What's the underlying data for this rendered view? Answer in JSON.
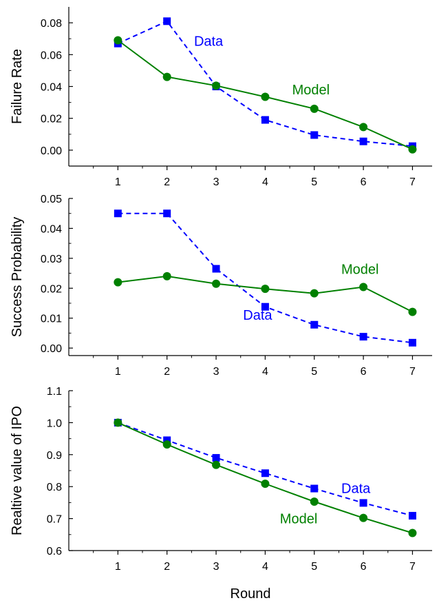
{
  "chart_data": [
    {
      "type": "line",
      "x": [
        1,
        2,
        3,
        4,
        5,
        6,
        7
      ],
      "xlim": [
        0.0,
        7.4
      ],
      "ylim": [
        -0.01,
        0.09
      ],
      "yticks": [
        0.0,
        0.02,
        0.04,
        0.06,
        0.08
      ],
      "ytick_labels": [
        "0.00",
        "0.02",
        "0.04",
        "0.06",
        "0.08"
      ],
      "xticks": [
        1,
        2,
        3,
        4,
        5,
        6,
        7
      ],
      "xtick_labels": [
        "1",
        "2",
        "3",
        "4",
        "5",
        "6",
        "7"
      ],
      "ylabel": "Failure Rate",
      "xlabel": "",
      "series": [
        {
          "name": "Data",
          "color": "#0000FF",
          "marker": "square",
          "dash": true,
          "values": [
            0.067,
            0.081,
            0.04,
            0.019,
            0.0095,
            0.0055,
            0.0025
          ]
        },
        {
          "name": "Model",
          "color": "#008000",
          "marker": "circle",
          "dash": false,
          "values": [
            0.069,
            0.046,
            0.0405,
            0.0335,
            0.026,
            0.0145,
            0.0005
          ]
        }
      ],
      "annotations": [
        {
          "text": "Data",
          "color": "#0000FF",
          "x": 2.55,
          "y": 0.0655
        },
        {
          "text": "Model",
          "color": "#008000",
          "x": 4.55,
          "y": 0.035
        }
      ]
    },
    {
      "type": "line",
      "x": [
        1,
        2,
        3,
        4,
        5,
        6,
        7
      ],
      "xlim": [
        0.0,
        7.4
      ],
      "ylim": [
        -0.0025,
        0.05
      ],
      "yticks": [
        0.0,
        0.01,
        0.02,
        0.03,
        0.04,
        0.05
      ],
      "ytick_labels": [
        "0.00",
        "0.01",
        "0.02",
        "0.03",
        "0.04",
        "0.05"
      ],
      "xticks": [
        1,
        2,
        3,
        4,
        5,
        6,
        7
      ],
      "xtick_labels": [
        "1",
        "2",
        "3",
        "4",
        "5",
        "6",
        "7"
      ],
      "ylabel": "Success Probability",
      "xlabel": "",
      "series": [
        {
          "name": "Data",
          "color": "#0000FF",
          "marker": "square",
          "dash": true,
          "values": [
            0.045,
            0.045,
            0.0265,
            0.0138,
            0.0078,
            0.0038,
            0.0018
          ]
        },
        {
          "name": "Model",
          "color": "#008000",
          "marker": "circle",
          "dash": false,
          "values": [
            0.022,
            0.024,
            0.0215,
            0.0198,
            0.0183,
            0.0204,
            0.0121
          ]
        }
      ],
      "annotations": [
        {
          "text": "Data",
          "color": "#0000FF",
          "x": 3.55,
          "y": 0.0095
        },
        {
          "text": "Model",
          "color": "#008000",
          "x": 5.55,
          "y": 0.0248
        }
      ]
    },
    {
      "type": "line",
      "x": [
        1,
        2,
        3,
        4,
        5,
        6,
        7
      ],
      "xlim": [
        0.0,
        7.4
      ],
      "ylim": [
        0.6,
        1.1
      ],
      "yticks": [
        0.6,
        0.7,
        0.8,
        0.9,
        1.0,
        1.1
      ],
      "ytick_labels": [
        "0.6",
        "0.7",
        "0.8",
        "0.9",
        "1.0",
        "1.1"
      ],
      "xticks": [
        1,
        2,
        3,
        4,
        5,
        6,
        7
      ],
      "xtick_labels": [
        "1",
        "2",
        "3",
        "4",
        "5",
        "6",
        "7"
      ],
      "ylabel": "Realtive value of IPO",
      "xlabel": "Round",
      "series": [
        {
          "name": "Data",
          "color": "#0000FF",
          "marker": "square",
          "dash": true,
          "values": [
            1.0,
            0.945,
            0.89,
            0.842,
            0.794,
            0.749,
            0.709
          ]
        },
        {
          "name": "Model",
          "color": "#008000",
          "marker": "circle",
          "dash": false,
          "values": [
            1.0,
            0.932,
            0.868,
            0.809,
            0.753,
            0.702,
            0.655
          ]
        }
      ],
      "annotations": [
        {
          "text": "Data",
          "color": "#0000FF",
          "x": 5.55,
          "y": 0.78
        },
        {
          "text": "Model",
          "color": "#008000",
          "x": 4.3,
          "y": 0.685
        }
      ]
    }
  ]
}
